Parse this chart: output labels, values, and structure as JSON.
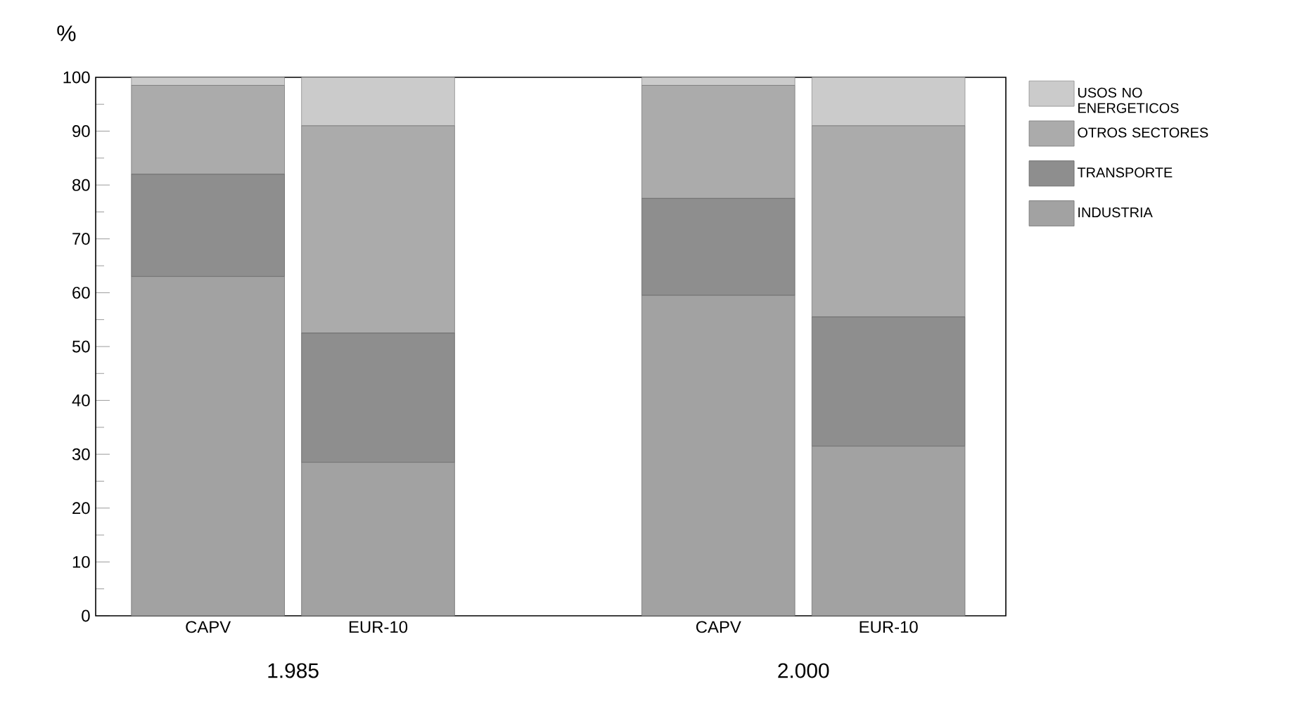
{
  "chart_data": {
    "type": "bar",
    "stacked": true,
    "ylabel": "%",
    "categories": [
      "CAPV",
      "EUR-10",
      null,
      "CAPV",
      "EUR-10"
    ],
    "series": [
      {
        "name": "INDUSTRIA",
        "color": "#a2a2a2",
        "values": [
          63,
          28.5,
          null,
          59.5,
          31.5
        ]
      },
      {
        "name": "TRANSPORTE",
        "color": "#8e8e8e",
        "values": [
          19,
          24,
          null,
          18,
          24
        ]
      },
      {
        "name": "OTROS SECTORES",
        "color": "#ababab",
        "values": [
          16.5,
          38.5,
          null,
          21,
          35.5
        ]
      },
      {
        "name": "USOS NO ENERGETICOS",
        "color": "#cbcbcb",
        "values": [
          1.5,
          9,
          null,
          1.5,
          9
        ]
      }
    ],
    "ylim": [
      0,
      100
    ],
    "yticks": [
      0,
      10,
      20,
      30,
      40,
      50,
      60,
      70,
      80,
      90,
      100
    ],
    "legend": "right",
    "grid": false,
    "annotations": [
      "1.985",
      "2.000"
    ]
  }
}
